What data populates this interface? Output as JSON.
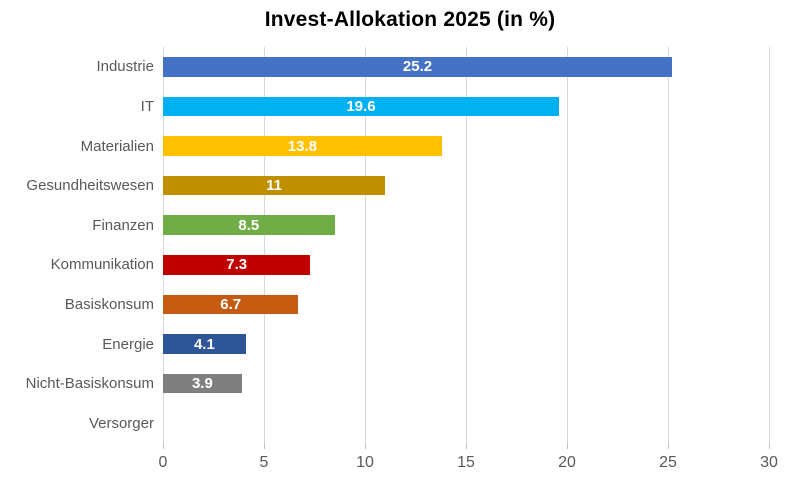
{
  "chart_data": {
    "type": "bar",
    "orientation": "horizontal",
    "title": "Invest-Allokation 2025 (in %)",
    "categories": [
      "Industrie",
      "IT",
      "Materialien",
      "Gesundheitswesen",
      "Finanzen",
      "Kommunikation",
      "Basiskonsum",
      "Energie",
      "Nicht-Basiskonsum",
      "Versorger"
    ],
    "values": [
      25.2,
      19.6,
      13.8,
      11,
      8.5,
      7.3,
      6.7,
      4.1,
      3.9,
      0
    ],
    "value_labels": [
      "25.2",
      "19.6",
      "13.8",
      "11",
      "8.5",
      "7.3",
      "6.7",
      "4.1",
      "3.9",
      ""
    ],
    "bar_colors": [
      "#4472c4",
      "#00b0f0",
      "#ffc000",
      "#bf8f00",
      "#70ad47",
      "#c00000",
      "#c55a11",
      "#2e5597",
      "#7f7f7f",
      "#ffffff"
    ],
    "xlabel": "",
    "ylabel": "",
    "xlim": [
      0,
      30
    ],
    "x_ticks": [
      "0",
      "5",
      "10",
      "15",
      "20",
      "25",
      "30"
    ],
    "grid": true,
    "legend": false,
    "colors": {
      "background": "#ffffff",
      "title": "#000000",
      "gridline": "#d9d9d9",
      "tick": "#bfbfbf",
      "axis_label": "#595959",
      "category_label": "#595959",
      "value_label": "#ffffff"
    }
  }
}
